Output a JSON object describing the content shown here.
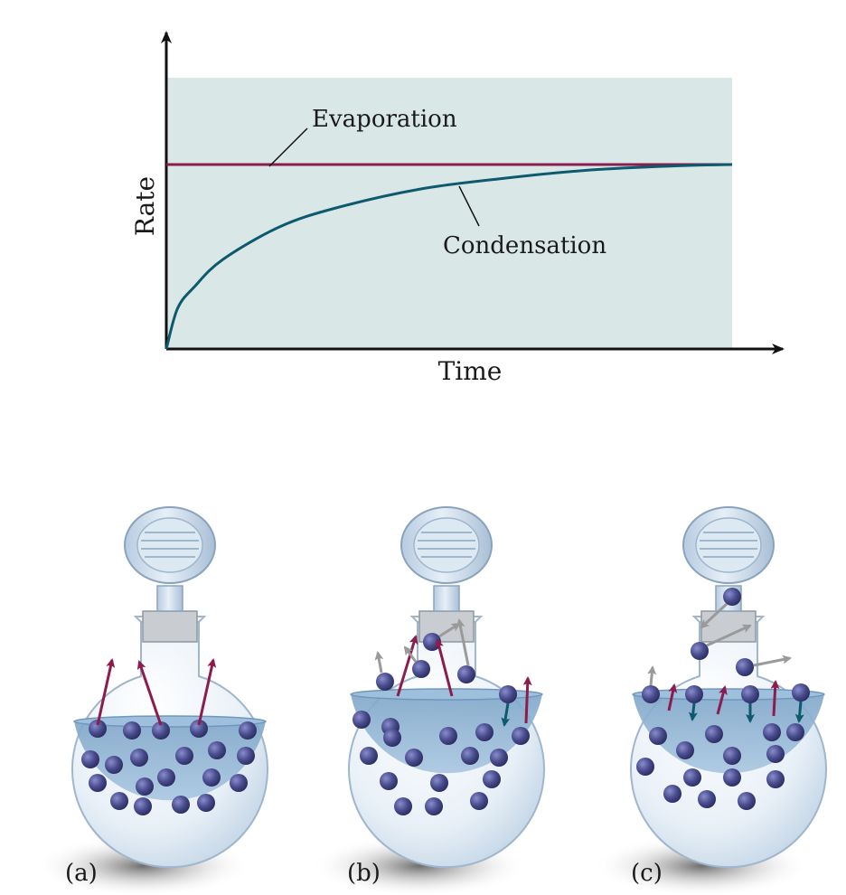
{
  "chart_data": {
    "type": "line",
    "title": "",
    "xlabel": "Time",
    "ylabel": "Rate",
    "xlim": [
      0,
      100
    ],
    "ylim": [
      0,
      100
    ],
    "grid": false,
    "annotations": [
      "Evaporation",
      "Condensation"
    ],
    "series": [
      {
        "name": "Evaporation",
        "x": [
          0,
          25,
          50,
          75,
          100
        ],
        "y": [
          68,
          68,
          68,
          68,
          68
        ],
        "color": "#8b1c4e"
      },
      {
        "name": "Condensation",
        "x": [
          0,
          2,
          5,
          10,
          20,
          30,
          45,
          60,
          75,
          90,
          100
        ],
        "y": [
          0,
          15,
          23,
          33,
          45,
          52,
          59,
          63,
          66,
          67.5,
          68
        ],
        "color": "#0d5a6e"
      }
    ]
  },
  "colors": {
    "plot_background": "#d9e8e7",
    "evaporation_line": "#8b1c4e",
    "condensation_line": "#0d5a6e",
    "escape_arrow": "#8b1c4e",
    "capture_arrow": "#0d5a6e",
    "vapor_arrow": "#9a9a9a",
    "molecule": "#4a4d8e",
    "liquid": "#8fb3d3",
    "glass": "#e6eff6"
  },
  "flasks": [
    {
      "label": "(a)",
      "state": "evaporation only"
    },
    {
      "label": "(b)",
      "state": "evaporation and some condensation"
    },
    {
      "label": "(c)",
      "state": "dynamic equilibrium"
    }
  ]
}
